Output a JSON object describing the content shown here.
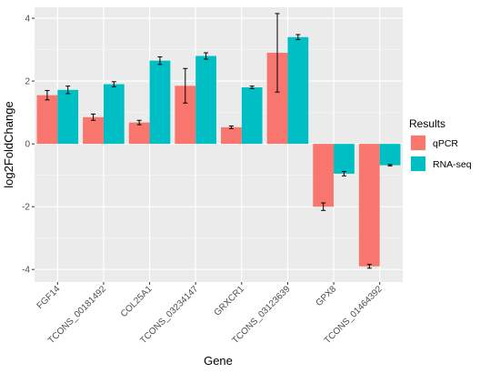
{
  "chart_data": {
    "type": "bar",
    "title": "",
    "xlabel": "Gene",
    "ylabel": "log2FoldChange",
    "categories": [
      "FGF14",
      "TCONS_00181492",
      "COL25A1",
      "TCONS_03234147",
      "GRXCR1",
      "TCONS_03123639",
      "GPX8",
      "TCONS_01464392"
    ],
    "series": [
      {
        "name": "qPCR",
        "color": "#F8766D",
        "values": [
          1.55,
          0.85,
          0.68,
          1.85,
          0.53,
          2.9,
          -2.0,
          -3.9
        ],
        "error": [
          0.15,
          0.1,
          0.07,
          0.55,
          0.04,
          1.25,
          0.12,
          0.06
        ]
      },
      {
        "name": "RNA-seq",
        "color": "#00BFC4",
        "values": [
          1.72,
          1.9,
          2.65,
          2.8,
          1.8,
          3.4,
          -0.95,
          -0.68
        ],
        "error": [
          0.12,
          0.08,
          0.12,
          0.1,
          0.04,
          0.08,
          0.07,
          0.02
        ]
      }
    ],
    "ylim": [
      -4.4,
      4.35
    ],
    "yticks": [
      -4,
      -2,
      0,
      2,
      4
    ],
    "ytick_labels": [
      "-4",
      "-2",
      "0",
      "2",
      "4"
    ],
    "grid": true,
    "legend": {
      "title": "Results",
      "placement": "right"
    }
  }
}
